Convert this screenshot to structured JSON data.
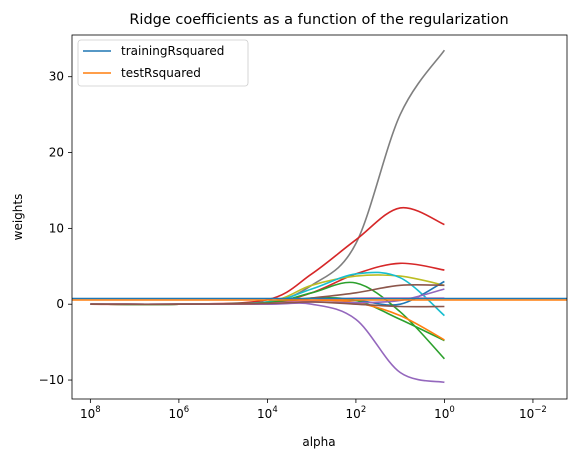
{
  "chart_data": {
    "type": "line",
    "title": "Ridge coefficients as a function of the regularization",
    "xlabel": "alpha",
    "ylabel": "weights",
    "xscale": "log",
    "x_axis_reversed": true,
    "xlim": [
      260000000,
      0.0017
    ],
    "ylim": [
      -12.5,
      35.5
    ],
    "x_ticks": [
      {
        "value": 100000000,
        "base": "10",
        "exp": "8"
      },
      {
        "value": 1000000,
        "base": "10",
        "exp": "6"
      },
      {
        "value": 10000,
        "base": "10",
        "exp": "4"
      },
      {
        "value": 100,
        "base": "10",
        "exp": "2"
      },
      {
        "value": 1,
        "base": "10",
        "exp": "0"
      },
      {
        "value": 0.01,
        "base": "10",
        "exp": "−2"
      }
    ],
    "y_ticks": [
      {
        "value": -10,
        "label": "−10"
      },
      {
        "value": 0,
        "label": "0"
      },
      {
        "value": 10,
        "label": "10"
      },
      {
        "value": 20,
        "label": "20"
      },
      {
        "value": 30,
        "label": "30"
      }
    ],
    "legend": {
      "placement": "top-left",
      "entries": [
        {
          "label": "trainingRsquared",
          "color": "#1f77b4"
        },
        {
          "label": "testRsquared",
          "color": "#ff7f0e"
        }
      ]
    },
    "series": [
      {
        "color": "#1f77b4",
        "x": [
          260000000,
          1,
          0.0017
        ],
        "y": [
          0.75,
          0.75,
          0.75
        ]
      },
      {
        "color": "#ff7f0e",
        "x": [
          260000000,
          1,
          0.0017
        ],
        "y": [
          0.55,
          0.55,
          0.55
        ]
      }
    ],
    "coefficient_paths": {
      "alphas": [
        100000000,
        1000000,
        10000,
        1000,
        100,
        10,
        1
      ],
      "lines": [
        {
          "color": "#7f7f7f",
          "y": [
            0,
            0,
            0.3,
            2.5,
            8,
            25,
            33.5
          ]
        },
        {
          "color": "#d62728",
          "y": [
            0,
            0,
            0.6,
            4,
            8.5,
            12.7,
            10.5
          ]
        },
        {
          "color": "#d62728",
          "y": [
            0,
            0,
            0.2,
            1.5,
            4,
            5.4,
            4.5
          ]
        },
        {
          "color": "#bcbd22",
          "y": [
            0,
            0,
            0.3,
            2.5,
            3.7,
            3.7,
            2.5
          ]
        },
        {
          "color": "#17becf",
          "y": [
            0,
            0,
            0.3,
            2,
            4,
            3.5,
            -1.5
          ]
        },
        {
          "color": "#1f77b4",
          "y": [
            0,
            0,
            0.1,
            0.5,
            0.5,
            0,
            3
          ]
        },
        {
          "color": "#2ca02c",
          "y": [
            0,
            0,
            0.2,
            1.5,
            2.8,
            -1,
            -7.2
          ]
        },
        {
          "color": "#2ca02c",
          "y": [
            0,
            0,
            0.2,
            0.8,
            0.5,
            -2,
            -4.8
          ]
        },
        {
          "color": "#ff7f0e",
          "y": [
            0,
            0,
            0.1,
            0.5,
            0.2,
            -1.5,
            -4.7
          ]
        },
        {
          "color": "#9467bd",
          "y": [
            0,
            0,
            0,
            0,
            -2,
            -9,
            -10.3
          ]
        },
        {
          "color": "#8c564b",
          "y": [
            0,
            0,
            0.1,
            0.8,
            1.5,
            2.5,
            2.5
          ]
        },
        {
          "color": "#e377c2",
          "y": [
            0,
            0,
            0.1,
            0.5,
            0.8,
            0.8,
            0.8
          ]
        },
        {
          "color": "#9467bd",
          "y": [
            0,
            0,
            0.1,
            0.3,
            0.2,
            0.5,
            2
          ]
        },
        {
          "color": "#8c564b",
          "y": [
            0,
            0,
            0.1,
            0.3,
            0,
            -0.3,
            -0.3
          ]
        }
      ]
    }
  }
}
